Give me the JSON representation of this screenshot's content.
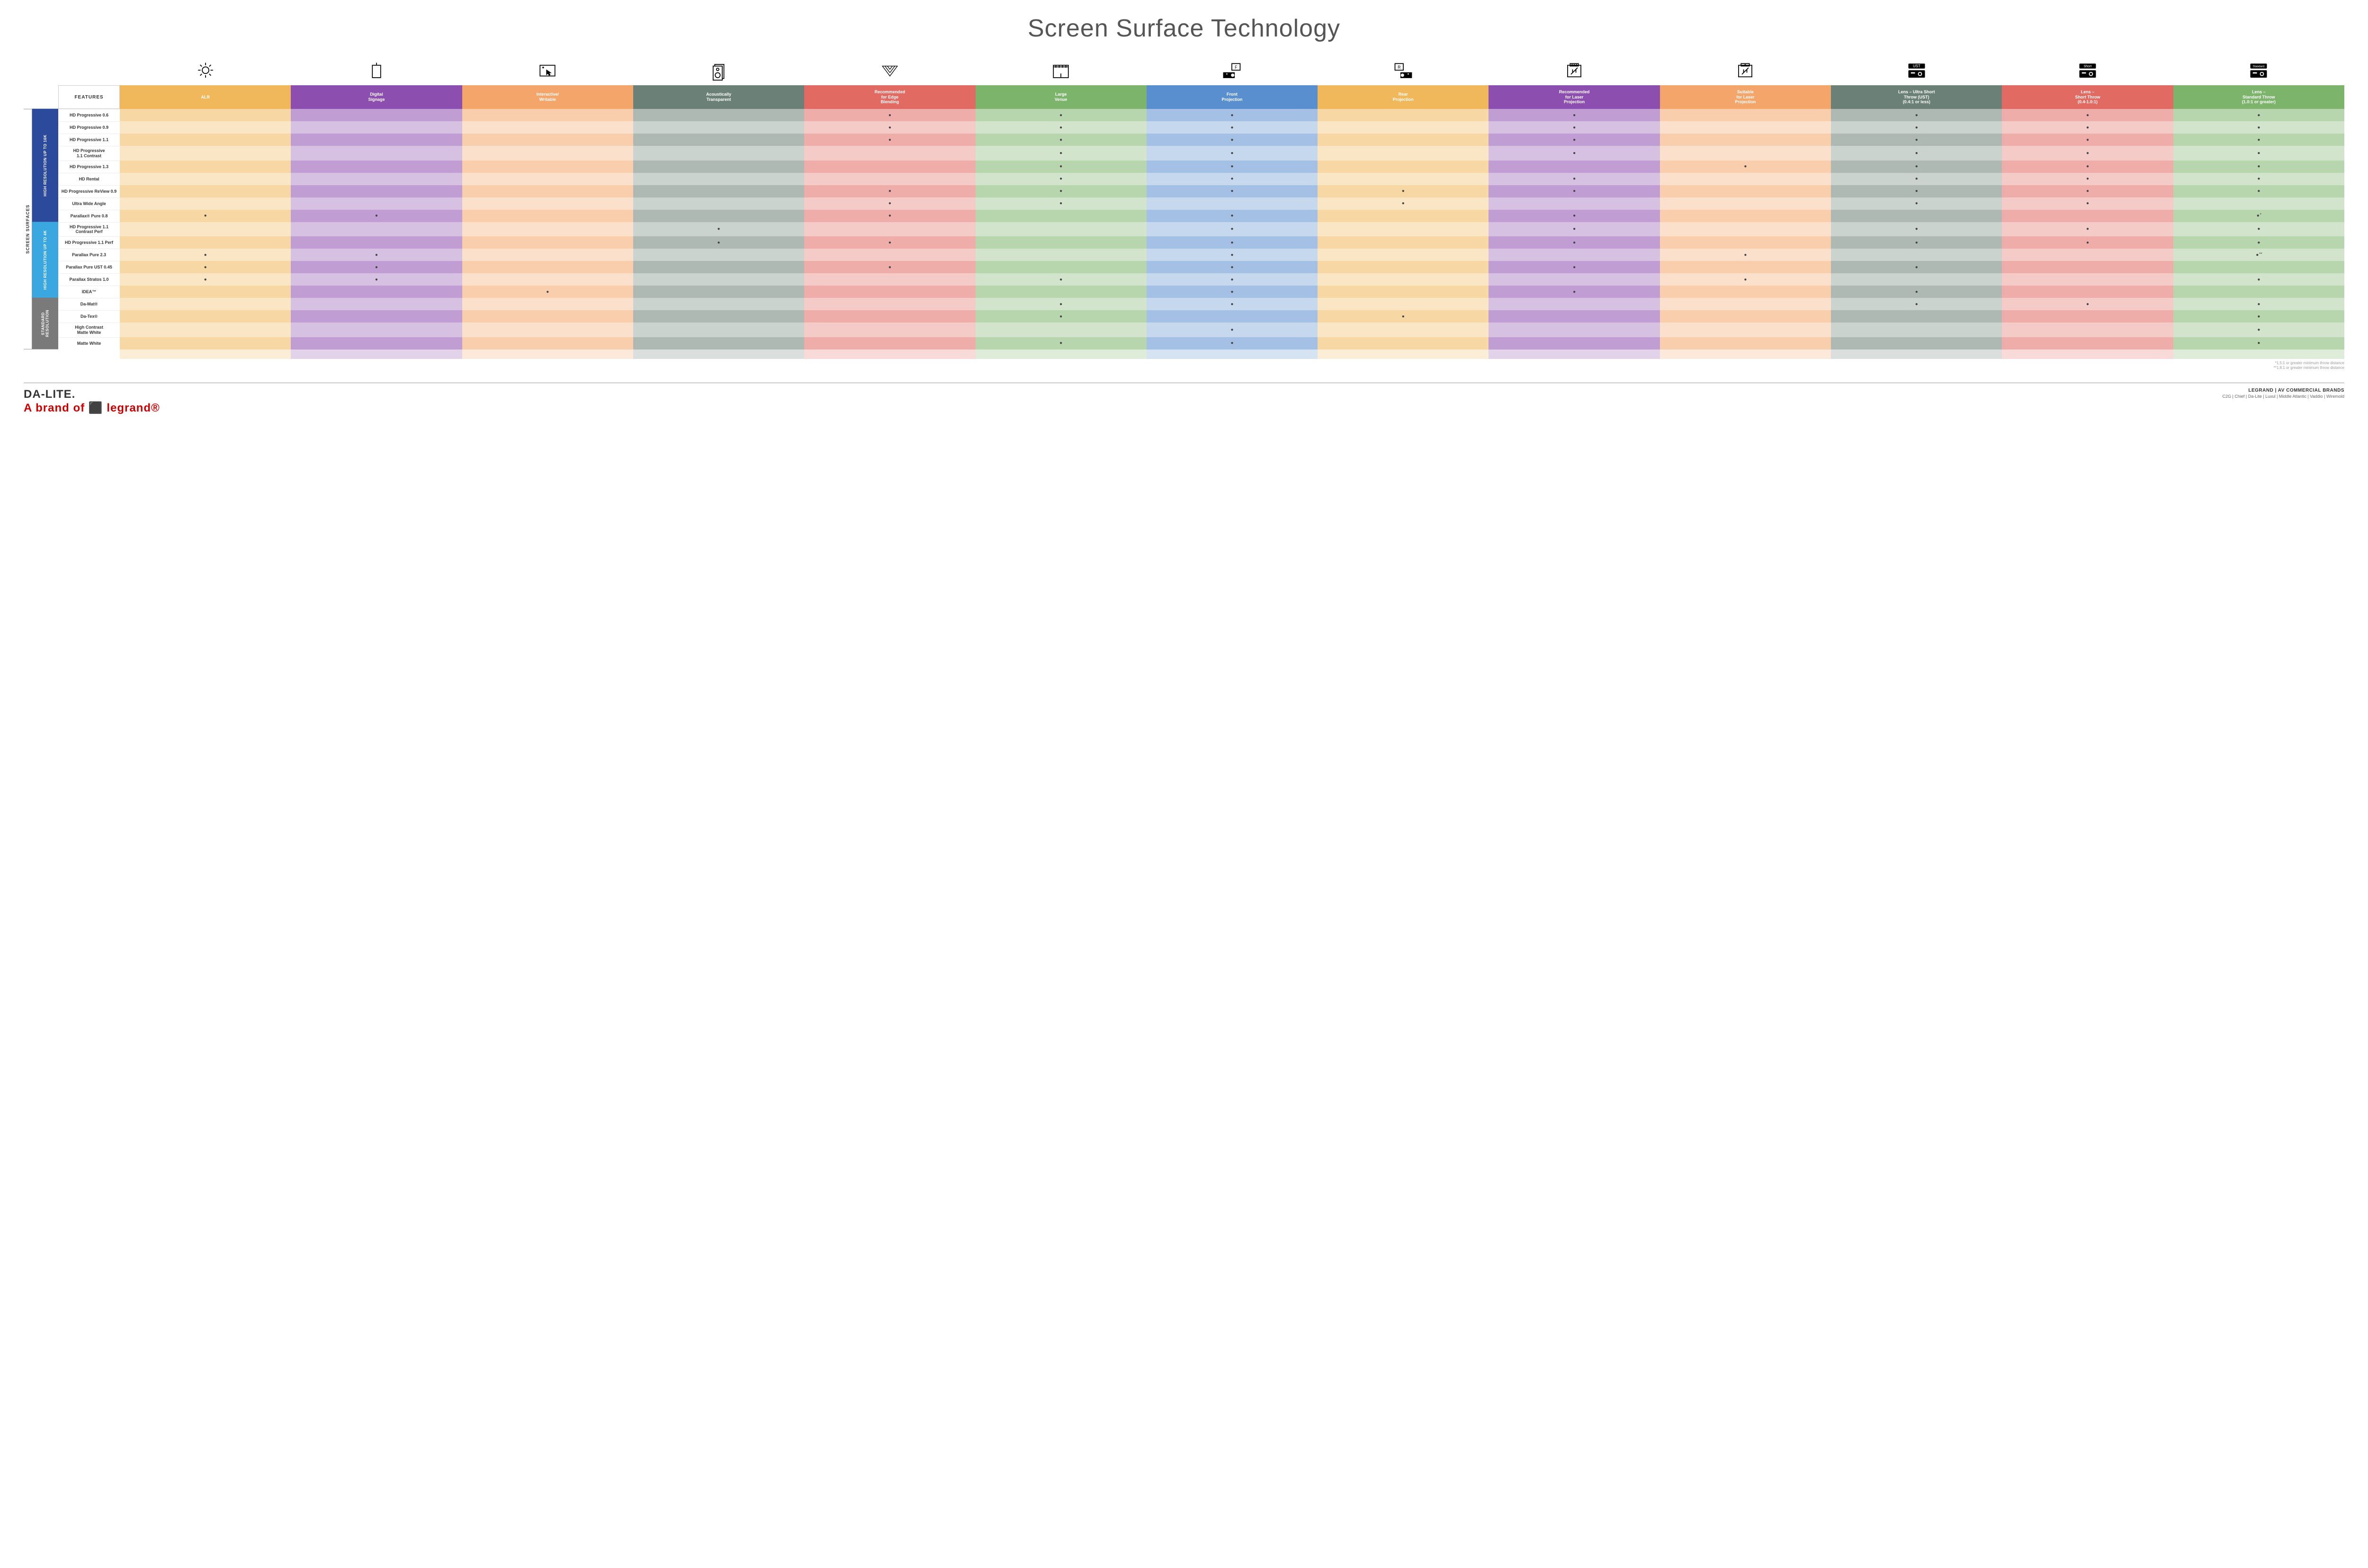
{
  "title": "Screen Surface Technology",
  "features_header": "FEATURES",
  "side_label": "SCREEN SURFACES",
  "columns": [
    {
      "key": "alr",
      "label": "ALR",
      "color": "#f0b85a",
      "alt": "#f7d9a8"
    },
    {
      "key": "signage",
      "label": "Digital\nSignage",
      "color": "#8c4fb0",
      "alt": "#c8b0db"
    },
    {
      "key": "interactive",
      "label": "Interactive/\nWritable",
      "color": "#f4a66a",
      "alt": "#fbd9bd"
    },
    {
      "key": "acoustic",
      "label": "Acoustically\nTransparent",
      "color": "#6b8077",
      "alt": "#b8c3bd"
    },
    {
      "key": "edge",
      "label": "Recommended\nfor Edge\nBlending",
      "color": "#e16a63",
      "alt": "#f2b8b3"
    },
    {
      "key": "venue",
      "label": "Large\nVenue",
      "color": "#7db46c",
      "alt": "#c3ddb8"
    },
    {
      "key": "front",
      "label": "Front\nProjection",
      "color": "#5a8fcf",
      "alt": "#b7d0ec"
    },
    {
      "key": "rear",
      "label": "Rear\nProjection",
      "color": "#f0b85a",
      "alt": "#f7d9a8"
    },
    {
      "key": "reclaser",
      "label": "Recommended\nfor Laser\nProjection",
      "color": "#8c4fb0",
      "alt": "#c8b0db"
    },
    {
      "key": "suitlaser",
      "label": "Suitable\nfor Laser\nProjection",
      "color": "#f4a66a",
      "alt": "#fbd9bd"
    },
    {
      "key": "ust",
      "label": "Lens – Ultra Short\nThrow (UST)\n(0.4:1 or less)",
      "color": "#6b8077",
      "alt": "#b8c3bd"
    },
    {
      "key": "short",
      "label": "Lens –\nShort Throw\n(0.4-1.0:1)",
      "color": "#e16a63",
      "alt": "#f2b8b3"
    },
    {
      "key": "std",
      "label": "Lens –\nStandard Throw\n(1.0:1 or greater)",
      "color": "#7db46c",
      "alt": "#c3ddb8"
    }
  ],
  "icon_labels": {
    "ust": "UST",
    "short": "Short",
    "std": "Standard",
    "front": "F",
    "rear": "R"
  },
  "groups": [
    {
      "key": "g16k",
      "label": "HIGH RESOLUTION UP TO 16K",
      "color": "#2b4a9b",
      "rows": [
        {
          "label": "HD Progressive 0.6",
          "dots": {
            "edge": 1,
            "venue": 1,
            "front": 1,
            "reclaser": 1,
            "ust": 1,
            "short": 1,
            "std": 1
          }
        },
        {
          "label": "HD Progressive 0.9",
          "dots": {
            "edge": 1,
            "venue": 1,
            "front": 1,
            "reclaser": 1,
            "ust": 1,
            "short": 1,
            "std": 1
          }
        },
        {
          "label": "HD Progressive 1.1",
          "dots": {
            "edge": 1,
            "venue": 1,
            "front": 1,
            "reclaser": 1,
            "ust": 1,
            "short": 1,
            "std": 1
          }
        },
        {
          "label": "HD Progressive\n1.1 Contrast",
          "dots": {
            "venue": 1,
            "front": 1,
            "reclaser": 1,
            "ust": 1,
            "short": 1,
            "std": 1
          }
        },
        {
          "label": "HD Progressive 1.3",
          "dots": {
            "venue": 1,
            "front": 1,
            "suitlaser": 1,
            "ust": 1,
            "short": 1,
            "std": 1
          }
        },
        {
          "label": "HD Rental",
          "dots": {
            "venue": 1,
            "front": 1,
            "reclaser": 1,
            "ust": 1,
            "short": 1,
            "std": 1
          }
        },
        {
          "label": "HD Progressive ReView 0.9",
          "dots": {
            "edge": 1,
            "venue": 1,
            "front": 1,
            "rear": 1,
            "reclaser": 1,
            "ust": 1,
            "short": 1,
            "std": 1
          }
        },
        {
          "label": "Ultra Wide Angle",
          "dots": {
            "edge": 1,
            "venue": 1,
            "rear": 1,
            "ust": 1,
            "short": 1
          }
        },
        {
          "label": "Parallax® Pure 0.8",
          "dots": {
            "alr": 1,
            "signage": 1,
            "edge": 1,
            "front": 1,
            "reclaser": 1,
            "std": 1
          },
          "suffix": "*"
        }
      ]
    },
    {
      "key": "g4k",
      "label": "HIGH RESOLUTION UP TO 4K",
      "color": "#3aa7e0",
      "rows": [
        {
          "label": "HD Progressive 1.1\nContrast Perf",
          "dots": {
            "acoustic": 1,
            "front": 1,
            "reclaser": 1,
            "ust": 1,
            "short": 1,
            "std": 1
          }
        },
        {
          "label": "HD Progressive 1.1 Perf",
          "dots": {
            "acoustic": 1,
            "edge": 1,
            "front": 1,
            "reclaser": 1,
            "ust": 1,
            "short": 1,
            "std": 1
          }
        },
        {
          "label": "Parallax Pure 2.3",
          "dots": {
            "alr": 1,
            "signage": 1,
            "front": 1,
            "suitlaser": 1,
            "std": 1
          },
          "suffix": "**"
        },
        {
          "label": "Parallax Pure UST 0.45",
          "dots": {
            "alr": 1,
            "signage": 1,
            "edge": 1,
            "front": 1,
            "reclaser": 1,
            "ust": 1
          }
        },
        {
          "label": "Parallax Stratos 1.0",
          "dots": {
            "alr": 1,
            "signage": 1,
            "venue": 1,
            "front": 1,
            "suitlaser": 1,
            "std": 1
          }
        },
        {
          "label": "IDEA™",
          "dots": {
            "interactive": 1,
            "front": 1,
            "reclaser": 1,
            "ust": 1
          }
        }
      ]
    },
    {
      "key": "gstd",
      "label": "STANDARD\nRESOLUTION",
      "color": "#7a7a7a",
      "rows": [
        {
          "label": "Da-Mat®",
          "dots": {
            "venue": 1,
            "front": 1,
            "ust": 1,
            "short": 1,
            "std": 1
          }
        },
        {
          "label": "Da-Tex®",
          "dots": {
            "venue": 1,
            "rear": 1,
            "std": 1
          }
        },
        {
          "label": "High Contrast\nMatte White",
          "dots": {
            "front": 1,
            "std": 1
          }
        },
        {
          "label": "Matte White",
          "dots": {
            "venue": 1,
            "front": 1,
            "std": 1
          }
        }
      ]
    }
  ],
  "footnotes": [
    "*1.5:1 or greater minimum throw distance",
    "**1.8:1 or greater minimum throw distance"
  ],
  "footer": {
    "logo": "DA-LITE.",
    "logo_sub": "A brand of ⬛ legrand®",
    "right_title": "LEGRAND | AV COMMERCIAL BRANDS",
    "right_brands": "C2G  |  Chief  |  Da-Lite  |  Luxul  |  Middle Atlantic  |  Vaddio  |  Wiremold"
  },
  "style": {
    "row_light_factor": 0.55
  }
}
